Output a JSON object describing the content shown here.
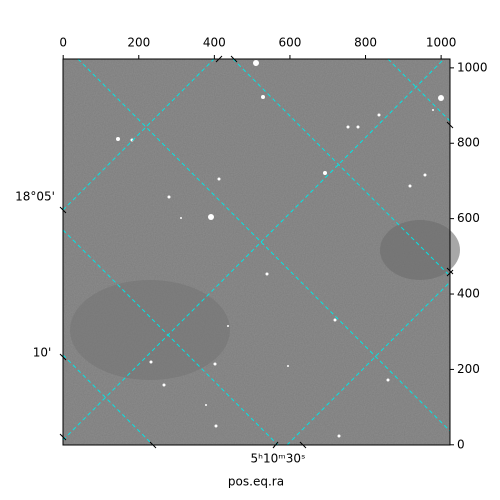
{
  "chart_data": {
    "type": "image",
    "x_label": "pos.eq.ra",
    "xlim": [
      -0.5,
      1023.5
    ],
    "xticks": [
      0,
      200,
      400,
      600,
      800,
      1000
    ],
    "ylim": [
      -0.5,
      1023.5
    ],
    "yticks": [
      0,
      200,
      400,
      600,
      800,
      1000
    ],
    "world_labels": {
      "dec": [
        "18°05'",
        "10'"
      ],
      "ra": [
        "5ʰ10ᵐ30ˢ"
      ]
    },
    "grid_color": "#00e5e5"
  }
}
